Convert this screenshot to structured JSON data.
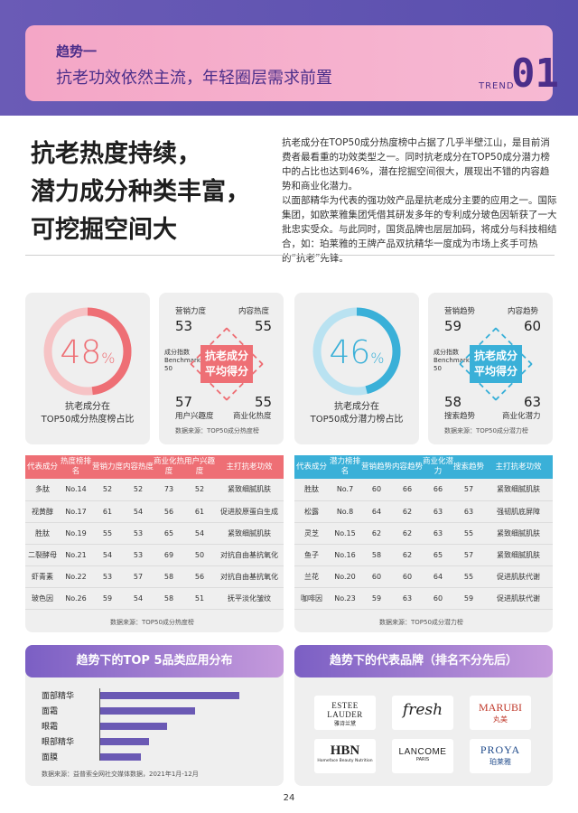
{
  "header": {
    "kicker": "趋势一",
    "title": "抗老功效依然主流，年轻圈层需求前置",
    "trend_word": "TREND",
    "trend_num": "01"
  },
  "headline": [
    "抗老热度持续，",
    "潜力成分种类丰富，",
    "可挖掘空间大"
  ],
  "intro": [
    "抗老成分在TOP50成分热度榜中占据了几乎半壁江山，是目前消费者最看重的功效类型之一。同时抗老成分在TOP50成分潜力榜中的占比也达到46%，潜在挖掘空间很大，展现出不错的内容趋势和商业化潜力。",
    "以面部精华为代表的强功效产品是抗老成分主要的应用之一。国际集团，如欧莱雅集团凭借其研发多年的专利成分玻色因斩获了一大批忠实受众。与此同时，国货品牌也层层加码，将成分与科技相结合，如：珀莱雅的王牌产品双抗精华一度成为市场上炙手可热的“抗老”先锋。"
  ],
  "left": {
    "ring": {
      "value": "48",
      "pct": "%",
      "fraction": 0.48,
      "caption1": "抗老成分在",
      "caption2": "TOP50成分热度榜占比",
      "color": "#ee6f75"
    },
    "bench": {
      "tl_label": "营销力度",
      "tl_value": "53",
      "tr_label": "内容热度",
      "tr_value": "55",
      "bl_value": "57",
      "bl_label": "用户兴趣度",
      "br_value": "55",
      "br_label": "商业化热度",
      "side1": "成分指数",
      "side2": "Benchmark",
      "side3": "50",
      "avg1": "抗老成分",
      "avg2": "平均得分",
      "source": "数据来源：TOP50成分热度榜",
      "color": "#ee6f75"
    },
    "table": {
      "headers": [
        "代表成分",
        "热度榜排名",
        "营销力度",
        "内容热度",
        "商业化热度",
        "用户兴趣度",
        "主打抗老功效"
      ],
      "rows": [
        [
          "多肽",
          "No.14",
          "52",
          "52",
          "73",
          "52",
          "紧致细腻肌肤"
        ],
        [
          "视黄醇",
          "No.17",
          "61",
          "54",
          "56",
          "61",
          "促进胶原蛋白生成"
        ],
        [
          "胜肽",
          "No.19",
          "55",
          "53",
          "65",
          "54",
          "紧致细腻肌肤"
        ],
        [
          "二裂酵母",
          "No.21",
          "54",
          "53",
          "69",
          "50",
          "对抗自由基抗氧化"
        ],
        [
          "虾青素",
          "No.22",
          "53",
          "57",
          "58",
          "56",
          "对抗自由基抗氧化"
        ],
        [
          "玻色因",
          "No.26",
          "59",
          "54",
          "58",
          "51",
          "抚平淡化皱纹"
        ]
      ],
      "source": "数据来源：TOP50成分热度榜",
      "color": "#ee6f75"
    }
  },
  "right": {
    "ring": {
      "value": "46",
      "pct": "%",
      "fraction": 0.46,
      "caption1": "抗老成分在",
      "caption2": "TOP50成分潜力榜占比",
      "color": "#3ab0d8"
    },
    "bench": {
      "tl_label": "营销趋势",
      "tl_value": "59",
      "tr_label": "内容趋势",
      "tr_value": "60",
      "bl_value": "58",
      "bl_label": "搜索趋势",
      "br_value": "63",
      "br_label": "商业化潜力",
      "side1": "成分指数",
      "side2": "Benchmark",
      "side3": "50",
      "avg1": "抗老成分",
      "avg2": "平均得分",
      "source": "数据来源：TOP50成分潜力榜",
      "color": "#3ab0d8"
    },
    "table": {
      "headers": [
        "代表成分",
        "潜力榜排名",
        "营销趋势",
        "内容趋势",
        "商业化潜力",
        "搜索趋势",
        "主打抗老功效"
      ],
      "rows": [
        [
          "胜肽",
          "No.7",
          "60",
          "66",
          "66",
          "57",
          "紧致细腻肌肤"
        ],
        [
          "松露",
          "No.8",
          "64",
          "62",
          "63",
          "63",
          "强韧肌底屏障"
        ],
        [
          "灵芝",
          "No.15",
          "62",
          "62",
          "63",
          "55",
          "紧致细腻肌肤"
        ],
        [
          "鱼子",
          "No.16",
          "58",
          "62",
          "65",
          "57",
          "紧致细腻肌肤"
        ],
        [
          "兰花",
          "No.20",
          "60",
          "60",
          "64",
          "55",
          "促进肌肤代谢"
        ],
        [
          "咖啡因",
          "No.23",
          "59",
          "63",
          "60",
          "59",
          "促进肌肤代谢"
        ]
      ],
      "source": "数据来源：TOP50成分潜力榜",
      "color": "#3ab0d8"
    }
  },
  "category_panel": {
    "title": "趋势下的TOP 5品类应用分布",
    "source": "数据来源：益普索全网社交媒体数据，2021年1月-12月",
    "bar_color": "#6a59b4"
  },
  "chart_data": {
    "type": "bar",
    "title": "趋势下的TOP 5品类应用分布",
    "categories": [
      "面部精华",
      "面霜",
      "眼霜",
      "眼部精华",
      "面膜"
    ],
    "values": [
      100,
      68,
      48,
      35,
      29
    ],
    "xlabel": "",
    "ylabel": ""
  },
  "brand_panel": {
    "title": "趋势下的代表品牌（排名不分先后）",
    "brands": [
      {
        "name": "ESTEE LAUDER",
        "sub": "雅诗兰黛"
      },
      {
        "name": "fresh",
        "sub": ""
      },
      {
        "name": "MARUBI",
        "sub": "丸美"
      },
      {
        "name": "HBN",
        "sub": "Homeface Beauty Nutrition"
      },
      {
        "name": "LANCOME",
        "sub": "PARIS"
      },
      {
        "name": "PROYA",
        "sub": "珀莱雅"
      }
    ]
  },
  "page_number": "24"
}
